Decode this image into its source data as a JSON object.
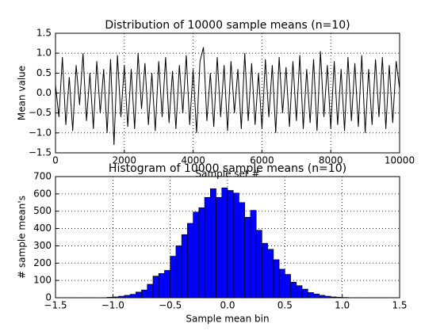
{
  "chart_data": [
    {
      "type": "line",
      "title": "Distribution of 10000 sample means (n=10)",
      "x_label": "Sample set #",
      "y_label": "Mean value",
      "xlim": [
        0,
        10000
      ],
      "xticks": [
        0,
        2000,
        4000,
        6000,
        8000,
        10000
      ],
      "ylim": [
        -1.5,
        1.5
      ],
      "yticks": [
        {
          "value": -1.5,
          "label": "−1.5"
        },
        {
          "value": -1,
          "label": "−1.0"
        },
        {
          "value": -0.5,
          "label": "−0.5"
        },
        {
          "value": 0,
          "label": "0.0"
        },
        0.5,
        {
          "value": 1,
          "label": "1.0"
        },
        1.5
      ],
      "grid": true,
      "color": "#000000",
      "x": [
        0,
        100,
        200,
        300,
        400,
        500,
        600,
        700,
        800,
        900,
        1000,
        1100,
        1200,
        1300,
        1400,
        1500,
        1600,
        1700,
        1800,
        1900,
        2000,
        2100,
        2200,
        2300,
        2400,
        2500,
        2600,
        2700,
        2800,
        2900,
        3000,
        3100,
        3200,
        3300,
        3400,
        3500,
        3600,
        3700,
        3800,
        3900,
        4000,
        4100,
        4200,
        4300,
        4400,
        4500,
        4600,
        4700,
        4800,
        4900,
        5000,
        5100,
        5200,
        5300,
        5400,
        5500,
        5600,
        5700,
        5800,
        5900,
        6000,
        6100,
        6200,
        6300,
        6400,
        6500,
        6600,
        6700,
        6800,
        6900,
        7000,
        7100,
        7200,
        7300,
        7400,
        7500,
        7600,
        7700,
        7800,
        7900,
        8000,
        8100,
        8200,
        8300,
        8400,
        8500,
        8600,
        8700,
        8800,
        8900,
        9000,
        9100,
        9200,
        9300,
        9400,
        9500,
        9600,
        9700,
        9800,
        9900,
        10000
      ],
      "values": [
        0.2,
        -0.6,
        0.9,
        -0.8,
        0.4,
        -0.95,
        0.7,
        -0.3,
        1.0,
        -0.7,
        0.5,
        -0.9,
        0.8,
        -0.5,
        0.6,
        -1.0,
        0.85,
        -1.3,
        0.95,
        -0.6,
        0.7,
        -0.85,
        0.6,
        -0.9,
        1.0,
        -0.4,
        0.75,
        -0.8,
        0.5,
        -0.95,
        0.8,
        -0.6,
        0.9,
        -0.75,
        0.55,
        -0.9,
        0.7,
        -0.5,
        0.95,
        -0.8,
        0.6,
        -1.0,
        0.8,
        1.15,
        -0.7,
        0.5,
        -0.85,
        0.9,
        -0.6,
        0.7,
        -0.95,
        0.8,
        -0.5,
        0.6,
        -0.9,
        1.0,
        -0.7,
        0.75,
        -0.8,
        0.5,
        -0.9,
        0.85,
        -0.6,
        0.7,
        -1.0,
        0.9,
        -0.5,
        0.65,
        -0.85,
        0.8,
        -0.7,
        0.95,
        -0.9,
        0.6,
        -0.75,
        0.85,
        -0.95,
        1.05,
        -0.6,
        0.7,
        -0.9,
        0.8,
        -0.8,
        0.6,
        -0.95,
        0.9,
        -0.7,
        0.75,
        -0.85,
        0.95,
        -1.0,
        0.6,
        -0.8,
        0.85,
        -0.6,
        0.9,
        -0.9,
        0.7,
        -0.75,
        0.8,
        0.1
      ]
    },
    {
      "type": "histogram",
      "title": "Histogram of 10000 sample means (n=10)",
      "x_label": "Sample mean bin",
      "y_label": "# sample mean's",
      "xlim": [
        -1.5,
        1.5
      ],
      "xticks": [
        {
          "value": -1.5,
          "label": "−1.5"
        },
        {
          "value": -1,
          "label": "−1.0"
        },
        {
          "value": -0.5,
          "label": "−0.5"
        },
        {
          "value": 0,
          "label": "0.0"
        },
        0.5,
        {
          "value": 1,
          "label": "1.0"
        },
        1.5
      ],
      "ylim": [
        0,
        700
      ],
      "yticks": [
        0,
        100,
        200,
        300,
        400,
        500,
        600,
        700
      ],
      "grid": true,
      "color": "#0000ff",
      "bins": [
        -1.3,
        -1.25,
        -1.2,
        -1.15,
        -1.1,
        -1.05,
        -1.0,
        -0.95,
        -0.9,
        -0.85,
        -0.8,
        -0.75,
        -0.7,
        -0.65,
        -0.6,
        -0.55,
        -0.5,
        -0.45,
        -0.4,
        -0.35,
        -0.3,
        -0.25,
        -0.2,
        -0.15,
        -0.1,
        -0.05,
        0,
        0.05,
        0.1,
        0.15,
        0.2,
        0.25,
        0.3,
        0.35,
        0.4,
        0.45,
        0.5,
        0.55,
        0.6,
        0.65,
        0.7,
        0.75,
        0.8,
        0.85,
        0.9,
        0.95,
        1.0,
        1.05,
        1.1,
        1.15,
        1.2
      ],
      "values": [
        1,
        0,
        0,
        0,
        1,
        3,
        5,
        9,
        14,
        20,
        33,
        45,
        78,
        125,
        140,
        158,
        240,
        300,
        365,
        430,
        495,
        520,
        580,
        630,
        580,
        635,
        620,
        605,
        550,
        465,
        505,
        390,
        315,
        280,
        220,
        165,
        135,
        90,
        70,
        50,
        30,
        22,
        14,
        9,
        5,
        3,
        2,
        1,
        0,
        1
      ]
    }
  ]
}
